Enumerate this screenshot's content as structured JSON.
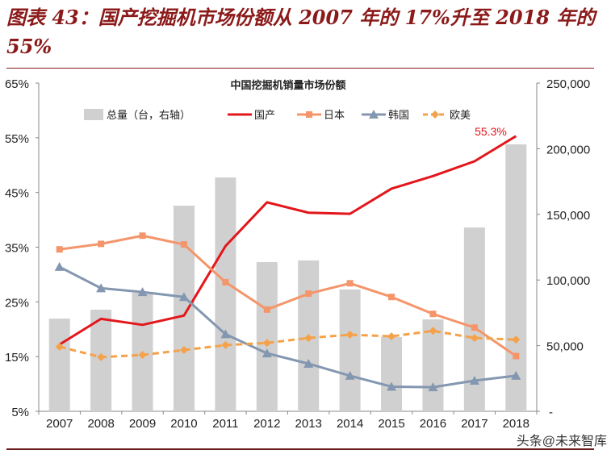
{
  "title": "图表 43：国产挖掘机市场份额从 2007 年的 17%升至 2018 年的 55%",
  "watermark": "头条@未来智库",
  "chart_data": {
    "type": "bar+line",
    "title": "中国挖掘机销量市场份额",
    "categories": [
      "2007",
      "2008",
      "2009",
      "2010",
      "2011",
      "2012",
      "2013",
      "2014",
      "2015",
      "2016",
      "2017",
      "2018"
    ],
    "y_left": {
      "range": [
        5,
        65
      ],
      "ticks": [
        "5%",
        "15%",
        "25%",
        "35%",
        "45%",
        "55%",
        "65%"
      ]
    },
    "y_right": {
      "range": [
        0,
        250000
      ],
      "ticks": [
        "-",
        "50,000",
        "100,000",
        "150,000",
        "200,000",
        "250,000"
      ]
    },
    "legend_position": "top",
    "series": [
      {
        "name": "总量（台，右轴）",
        "type": "bar",
        "axis": "right",
        "color": "#d0d0d0",
        "values": [
          70600,
          77400,
          90300,
          156600,
          178100,
          113600,
          114900,
          92800,
          56500,
          70000,
          140000,
          203300
        ]
      },
      {
        "name": "国产",
        "type": "line",
        "color": "#e3161b",
        "values": [
          17.2,
          21.9,
          20.8,
          22.5,
          35.2,
          43.2,
          41.3,
          41.1,
          45.7,
          48.0,
          50.7,
          55.3
        ]
      },
      {
        "name": "日本",
        "type": "line",
        "marker": "square",
        "color": "#f4956a",
        "values": [
          34.6,
          35.6,
          37.1,
          35.5,
          28.6,
          23.6,
          26.5,
          28.4,
          25.9,
          22.8,
          20.3,
          15.1
        ]
      },
      {
        "name": "韩国",
        "type": "line",
        "marker": "triangle",
        "color": "#8497b0",
        "values": [
          31.4,
          27.5,
          26.8,
          25.9,
          19.1,
          15.6,
          13.7,
          11.5,
          9.5,
          9.4,
          10.6,
          11.5
        ]
      },
      {
        "name": "欧美",
        "type": "line",
        "marker": "diamond",
        "dashed": true,
        "color": "#f4a24a",
        "values": [
          16.8,
          14.9,
          15.3,
          16.2,
          17.1,
          17.5,
          18.4,
          19.0,
          18.7,
          19.7,
          18.4,
          18.1
        ]
      }
    ],
    "annotations": [
      "55.3%"
    ]
  }
}
